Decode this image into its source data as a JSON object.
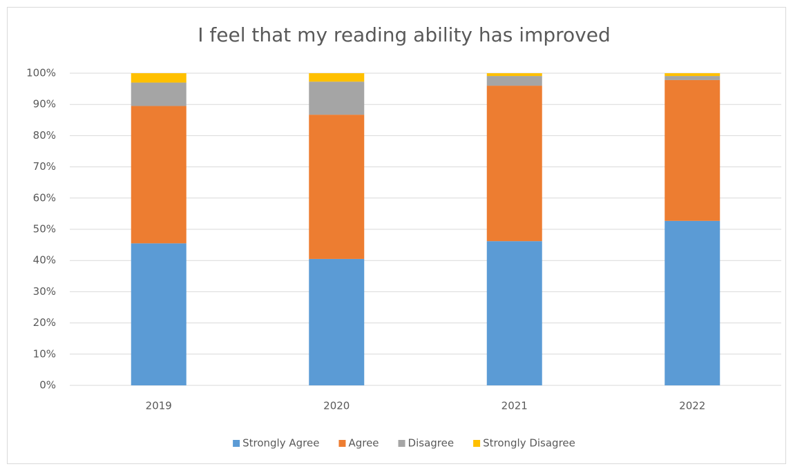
{
  "chart_data": {
    "type": "stacked_bar",
    "title": "I feel that my reading ability has improved",
    "categories": [
      "2019",
      "2020",
      "2021",
      "2022"
    ],
    "series": [
      {
        "name": "Strongly Agree",
        "color": "#5b9bd5",
        "values": [
          45.5,
          40.5,
          46.2,
          52.7
        ]
      },
      {
        "name": "Agree",
        "color": "#ed7d31",
        "values": [
          44,
          46.2,
          49.8,
          45.1
        ]
      },
      {
        "name": "Disagree",
        "color": "#a5a5a5",
        "values": [
          7.5,
          10.6,
          3.1,
          1.3
        ]
      },
      {
        "name": "Strongly Disagree",
        "color": "#ffc000",
        "values": [
          3,
          2.7,
          0.9,
          0.9
        ]
      }
    ],
    "ylim": [
      0,
      100
    ],
    "yticks": [
      {
        "value": 0,
        "label": "0%"
      },
      {
        "value": 10,
        "label": "10%"
      },
      {
        "value": 20,
        "label": "20%"
      },
      {
        "value": 30,
        "label": "30%"
      },
      {
        "value": 40,
        "label": "40%"
      },
      {
        "value": 50,
        "label": "50%"
      },
      {
        "value": 60,
        "label": "60%"
      },
      {
        "value": 70,
        "label": "70%"
      },
      {
        "value": 80,
        "label": "80%"
      },
      {
        "value": 90,
        "label": "90%"
      },
      {
        "value": 100,
        "label": "100%"
      }
    ],
    "grid": true,
    "legend": "bottom"
  }
}
